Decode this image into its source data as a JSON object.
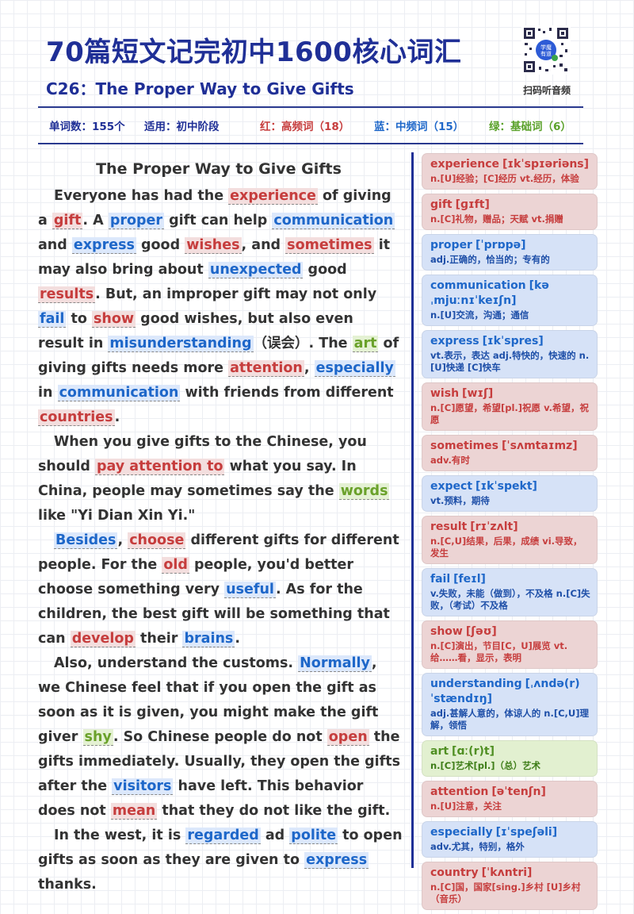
{
  "header": {
    "title": "70篇短文记完初中1600核心词汇",
    "subtitle": "C26：The Proper Way to Give Gifts",
    "qr_label": "扫码听音频"
  },
  "info": {
    "word_count": "单词数：155个",
    "stage": "适用：初中阶段",
    "red_legend": "红：高频词（18）",
    "blue_legend": "蓝：中频词（15）",
    "green_legend": "绿：基础词（6）"
  },
  "colors": {
    "accent": "#1f2f96",
    "high": "#c63d3d",
    "mid": "#1e67c9",
    "basic": "#5aa12a"
  },
  "article": {
    "title": "The Proper Way to Give Gifts",
    "paragraphs": [
      [
        {
          "t": "Everyone has had the "
        },
        {
          "t": "experience",
          "c": "red"
        },
        {
          "t": " of giving a "
        },
        {
          "t": "gift",
          "c": "red"
        },
        {
          "t": ". A "
        },
        {
          "t": "proper",
          "c": "blue"
        },
        {
          "t": " gift can help "
        },
        {
          "t": "communication",
          "c": "blue"
        },
        {
          "t": " and "
        },
        {
          "t": "express",
          "c": "blue"
        },
        {
          "t": " good "
        },
        {
          "t": "wishes",
          "c": "red"
        },
        {
          "t": ", and "
        },
        {
          "t": "sometimes",
          "c": "red"
        },
        {
          "t": " it may also bring about "
        },
        {
          "t": "unexpected",
          "c": "blue"
        },
        {
          "t": " good "
        },
        {
          "t": "results",
          "c": "red"
        },
        {
          "t": ". But, an improper gift may not only "
        },
        {
          "t": "fail",
          "c": "blue"
        },
        {
          "t": " to "
        },
        {
          "t": "show",
          "c": "red"
        },
        {
          "t": " good wishes, but also even result in "
        },
        {
          "t": "misunderstanding",
          "c": "blue"
        },
        {
          "t": "（误会）. The "
        },
        {
          "t": "art",
          "c": "green"
        },
        {
          "t": " of giving gifts needs more "
        },
        {
          "t": "attention",
          "c": "red"
        },
        {
          "t": ", "
        },
        {
          "t": "especially",
          "c": "blue"
        },
        {
          "t": " in "
        },
        {
          "t": "communication",
          "c": "blue"
        },
        {
          "t": " with friends from different "
        },
        {
          "t": "countries",
          "c": "red"
        },
        {
          "t": "."
        }
      ],
      [
        {
          "t": "When you give gifts to the Chinese, you should "
        },
        {
          "t": "pay attention to",
          "c": "red"
        },
        {
          "t": " what you say. In China, people may sometimes say the "
        },
        {
          "t": "words",
          "c": "green"
        },
        {
          "t": " like \"Yi Dian Xin Yi.\""
        }
      ],
      [
        {
          "t": "Besides",
          "c": "blue"
        },
        {
          "t": ", "
        },
        {
          "t": "choose",
          "c": "red"
        },
        {
          "t": " different gifts for different people. For the "
        },
        {
          "t": "old",
          "c": "red"
        },
        {
          "t": " people, you'd better choose something very "
        },
        {
          "t": "useful",
          "c": "blue"
        },
        {
          "t": ". As for the children, the best gift will be something that can "
        },
        {
          "t": "develop",
          "c": "red"
        },
        {
          "t": " their "
        },
        {
          "t": "brains",
          "c": "blue"
        },
        {
          "t": "."
        }
      ],
      [
        {
          "t": "Also, understand the customs. "
        },
        {
          "t": "Normally",
          "c": "blue"
        },
        {
          "t": ", we Chinese feel that if you open the gift as soon as it is given, you might make the gift giver "
        },
        {
          "t": "shy",
          "c": "green"
        },
        {
          "t": ". So Chinese people do not "
        },
        {
          "t": "open",
          "c": "red"
        },
        {
          "t": " the gifts immediately. Usually, they open the gifts after the "
        },
        {
          "t": "visitors",
          "c": "blue"
        },
        {
          "t": " have left. This behavior does not "
        },
        {
          "t": "mean",
          "c": "red"
        },
        {
          "t": " that they do not like the gift."
        }
      ],
      [
        {
          "t": "In the west, it is "
        },
        {
          "t": "regarded",
          "c": "blue"
        },
        {
          "t": " ad "
        },
        {
          "t": "polite",
          "c": "blue"
        },
        {
          "t": " to open gifts as soon as they are given to "
        },
        {
          "t": "express",
          "c": "blue"
        },
        {
          "t": " thanks."
        }
      ]
    ]
  },
  "vocab": [
    {
      "word": "experience",
      "phon": "[ɪkˈspɪəriəns]",
      "def": "n.[U]经验；[C]经历 vt.经历，体验",
      "color": "red"
    },
    {
      "word": "gift",
      "phon": "[ɡɪft]",
      "def": "n.[C]礼物，赠品；天赋 vt.捐赠",
      "color": "red"
    },
    {
      "word": "proper",
      "phon": "[ˈprɒpə]",
      "def": "adj.正确的，恰当的；专有的",
      "color": "blue"
    },
    {
      "word": "communication",
      "phon": "[kəˌmjuːnɪˈkeɪʃn]",
      "def": "n.[U]交流，沟通；通信",
      "color": "blue"
    },
    {
      "word": "express",
      "phon": "[ɪkˈspres]",
      "def": "vt.表示，表达 adj.特快的，快速的 n.[U]快递 [C]快车",
      "color": "blue"
    },
    {
      "word": "wish",
      "phon": "[wɪʃ]",
      "def": "n.[C]愿望，希望[pl.]祝愿 v.希望，祝愿",
      "color": "red"
    },
    {
      "word": "sometimes",
      "phon": "[ˈsʌmtaɪmz]",
      "def": "adv.有时",
      "color": "red"
    },
    {
      "word": "expect",
      "phon": "[ɪkˈspekt]",
      "def": "vt.预料，期待",
      "color": "blue"
    },
    {
      "word": "result",
      "phon": "[rɪˈzʌlt]",
      "def": "n.[C,U]结果，后果，成绩 vi.导致，发生",
      "color": "red"
    },
    {
      "word": "fail",
      "phon": "[feɪl]",
      "def": "v.失败，未能（做到），不及格 n.[C]失败，（考试）不及格",
      "color": "blue"
    },
    {
      "word": "show",
      "phon": "[ʃəʊ]",
      "def": "n.[C]演出，节目[C，U]展览 vt.给……看，显示，表明",
      "color": "red"
    },
    {
      "word": "understanding",
      "phon": "[ˌʌndə(r)ˈstændɪŋ]",
      "def": "adj.甚解人意的，体谅人的 n.[C,U]理解，领悟",
      "color": "blue"
    },
    {
      "word": "art",
      "phon": "[ɑː(r)t]",
      "def": "n.[C]艺术[pl.]（总）艺术",
      "color": "green"
    },
    {
      "word": "attention",
      "phon": "[əˈtenʃn]",
      "def": "n.[U]注意，关注",
      "color": "red"
    },
    {
      "word": "especially",
      "phon": "[ɪˈspeʃəli]",
      "def": "adv.尤其，特别，格外",
      "color": "blue"
    },
    {
      "word": "country",
      "phon": "[ˈkʌntri]",
      "def": "n.[C]国，国家[sing.]乡村 [U]乡村（音乐）",
      "color": "red"
    }
  ]
}
